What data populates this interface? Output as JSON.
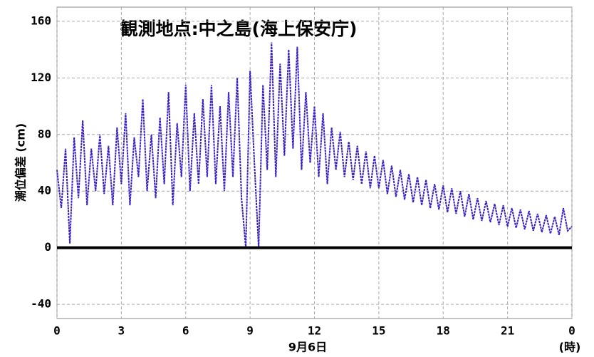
{
  "chart_data": {
    "type": "line",
    "title": "観測地点:中之島(海上保安庁)",
    "y_label": "潮位偏差 (cm)",
    "x_label": "9月6日",
    "x_unit": "(時)",
    "x": [
      0,
      0.2,
      0.4,
      0.6,
      0.8,
      1,
      1.2,
      1.4,
      1.6,
      1.8,
      2,
      2.2,
      2.4,
      2.6,
      2.8,
      3,
      3.2,
      3.4,
      3.6,
      3.8,
      4,
      4.2,
      4.4,
      4.6,
      4.8,
      5,
      5.2,
      5.4,
      5.6,
      5.8,
      6,
      6.2,
      6.4,
      6.6,
      6.8,
      7,
      7.2,
      7.4,
      7.6,
      7.8,
      8,
      8.2,
      8.4,
      8.6,
      8.8,
      9,
      9.2,
      9.4,
      9.6,
      9.8,
      10,
      10.2,
      10.4,
      10.6,
      10.8,
      11,
      11.2,
      11.4,
      11.6,
      11.8,
      12,
      12.2,
      12.4,
      12.6,
      12.8,
      13,
      13.2,
      13.4,
      13.6,
      13.8,
      14,
      14.2,
      14.4,
      14.6,
      14.8,
      15,
      15.2,
      15.4,
      15.6,
      15.8,
      16,
      16.2,
      16.4,
      16.6,
      16.8,
      17,
      17.2,
      17.4,
      17.6,
      17.8,
      18,
      18.2,
      18.4,
      18.6,
      18.8,
      19,
      19.2,
      19.4,
      19.6,
      19.8,
      20,
      20.2,
      20.4,
      20.6,
      20.8,
      21,
      21.2,
      21.4,
      21.6,
      21.8,
      22,
      22.2,
      22.4,
      22.6,
      22.8,
      23,
      23.2,
      23.4,
      23.6,
      23.8,
      24
    ],
    "series": [
      {
        "name": "潮位偏差",
        "color": "#3b1ec4",
        "values": [
          55,
          28,
          70,
          3,
          78,
          35,
          90,
          30,
          70,
          40,
          80,
          38,
          72,
          30,
          85,
          45,
          95,
          30,
          78,
          50,
          105,
          40,
          80,
          35,
          92,
          45,
          110,
          30,
          88,
          50,
          115,
          40,
          95,
          45,
          105,
          50,
          115,
          45,
          100,
          40,
          110,
          50,
          120,
          35,
          0,
          125,
          60,
          0,
          115,
          55,
          145,
          50,
          130,
          65,
          140,
          70,
          142,
          55,
          110,
          60,
          100,
          50,
          95,
          45,
          85,
          55,
          82,
          50,
          75,
          48,
          72,
          45,
          68,
          42,
          65,
          42,
          62,
          38,
          58,
          36,
          55,
          34,
          52,
          32,
          50,
          30,
          48,
          28,
          45,
          27,
          44,
          25,
          42,
          24,
          40,
          22,
          38,
          20,
          35,
          19,
          33,
          18,
          31,
          16,
          30,
          15,
          28,
          14,
          27,
          13,
          26,
          12,
          24,
          11,
          23,
          10,
          22,
          9,
          28,
          12,
          15
        ]
      }
    ],
    "xlim": [
      0,
      24
    ],
    "xticks": [
      0,
      3,
      6,
      9,
      12,
      15,
      18,
      21,
      {
        "value": 24,
        "label": "0"
      }
    ],
    "ylim": [
      -50,
      170
    ],
    "yticks": [
      -40,
      0,
      40,
      80,
      120,
      160
    ],
    "grid": true
  }
}
